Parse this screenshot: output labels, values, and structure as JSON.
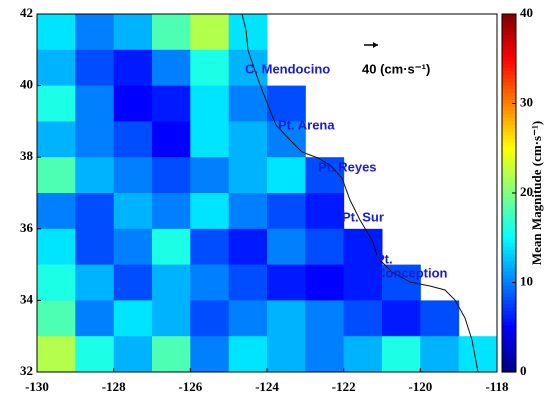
{
  "chart_data": {
    "type": "heatmap",
    "x": [
      -130,
      -129,
      -128,
      -127,
      -126,
      -125,
      -124,
      -123,
      -122,
      -121,
      -120,
      -119
    ],
    "y": [
      41,
      40,
      39,
      38,
      37,
      36,
      35,
      34,
      33,
      32
    ],
    "values": [
      [
        14,
        10,
        12,
        18,
        22,
        14,
        null,
        null,
        null,
        null,
        null,
        null
      ],
      [
        12,
        8,
        6,
        10,
        16,
        12,
        null,
        null,
        null,
        null,
        null,
        null
      ],
      [
        16,
        10,
        5,
        6,
        14,
        10,
        8,
        null,
        null,
        null,
        null,
        null
      ],
      [
        12,
        10,
        8,
        5,
        14,
        12,
        10,
        null,
        null,
        null,
        null,
        null
      ],
      [
        18,
        12,
        10,
        8,
        10,
        12,
        14,
        8,
        null,
        null,
        null,
        null
      ],
      [
        10,
        8,
        12,
        10,
        14,
        10,
        8,
        6,
        null,
        null,
        null,
        null
      ],
      [
        14,
        8,
        10,
        16,
        8,
        6,
        10,
        8,
        6,
        null,
        null,
        null
      ],
      [
        16,
        12,
        8,
        12,
        10,
        8,
        6,
        5,
        6,
        8,
        null,
        null
      ],
      [
        18,
        10,
        14,
        12,
        8,
        10,
        12,
        10,
        8,
        6,
        8,
        null
      ],
      [
        22,
        16,
        12,
        18,
        10,
        14,
        12,
        10,
        12,
        16,
        12,
        14
      ]
    ],
    "xlim": [
      -130,
      -118
    ],
    "ylim": [
      32,
      42
    ],
    "xticks": [
      -130,
      -128,
      -126,
      -124,
      -122,
      -120,
      -118
    ],
    "yticks": [
      32,
      34,
      36,
      38,
      40,
      42
    ],
    "colorbar": {
      "lim": [
        0,
        40
      ],
      "ticks": [
        0,
        10,
        20,
        30,
        40
      ],
      "label": "Mean Magnitude (cm·s⁻¹)"
    },
    "scale_label": "40 (cm·s⁻¹)",
    "annotations": [
      "C. Mendocino",
      "Pt. Arena",
      "Pt. Reyes",
      "Pt. Sur",
      "Pt.",
      "Conception"
    ]
  }
}
